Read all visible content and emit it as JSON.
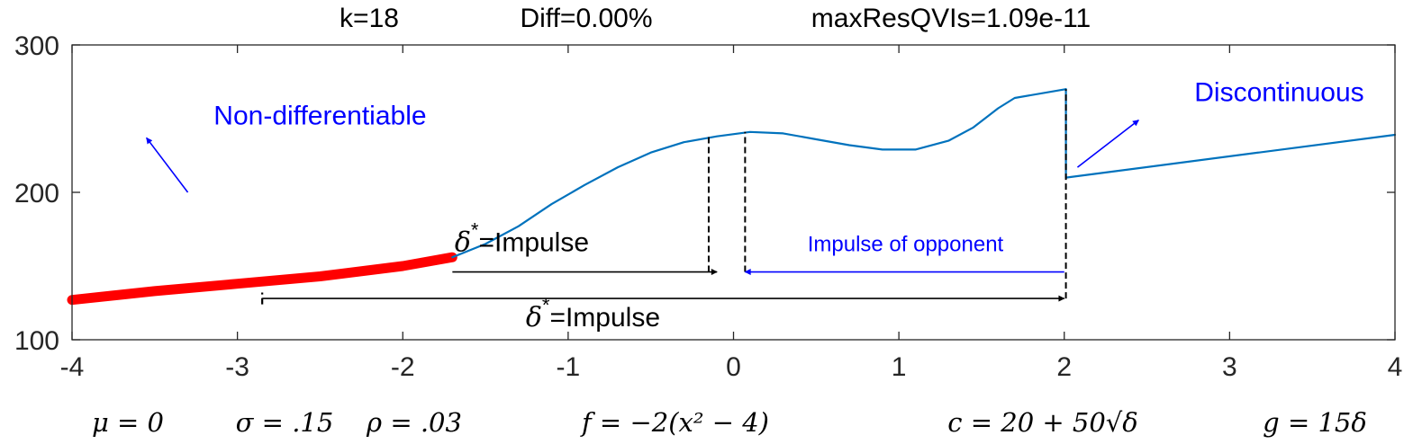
{
  "chart_data": {
    "type": "line",
    "title": "k=18        Diff=0.00%        maxResQVIs=1.09e-11",
    "title_parts": [
      "k=18",
      "Diff=0.00%",
      "maxResQVIs=1.09e-11"
    ],
    "xlabel": "",
    "ylabel": "",
    "xlim": [
      -4,
      4
    ],
    "ylim": [
      100,
      300
    ],
    "x_ticks": [
      -4,
      -3,
      -2,
      -1,
      0,
      1,
      2,
      3,
      4
    ],
    "y_ticks": [
      100,
      200,
      300
    ],
    "grid": false,
    "colors": {
      "line": "#0072bd",
      "highlight": "#ff0000",
      "annotation_blue": "#0000ff",
      "annotation_black": "#000000"
    },
    "series": [
      {
        "style": "thick-red",
        "x": [
          -4.0,
          -3.5,
          -3.0,
          -2.5,
          -2.0,
          -1.7
        ],
        "y": [
          127,
          133,
          138,
          143,
          150,
          156
        ]
      },
      {
        "style": "line",
        "x": [
          -1.7,
          -1.5,
          -1.3,
          -1.1,
          -0.9,
          -0.7,
          -0.5,
          -0.3,
          -0.1,
          0.1,
          0.3,
          0.5,
          0.7,
          0.9,
          1.1,
          1.3,
          1.45,
          1.6,
          1.7,
          2.01
        ],
        "y": [
          156,
          165,
          177,
          192,
          205,
          217,
          227,
          234,
          238,
          241,
          240,
          236,
          232,
          229,
          229,
          235,
          244,
          257,
          264,
          270
        ]
      },
      {
        "style": "line",
        "x": [
          2.01,
          2.01
        ],
        "y": [
          270,
          210
        ]
      },
      {
        "style": "line",
        "x": [
          2.01,
          4.0
        ],
        "y": [
          210,
          239
        ]
      }
    ],
    "annotations": [
      {
        "text": "Non-differentiable",
        "x": -2.5,
        "y": 246,
        "color": "#0000ff",
        "arrow_from": [
          -3.3,
          200
        ],
        "arrow_to": [
          -3.55,
          237
        ]
      },
      {
        "text": "Discontinuous",
        "x": 3.3,
        "y": 262,
        "color": "#0000ff",
        "arrow_from": [
          2.08,
          217
        ],
        "arrow_to": [
          2.45,
          249
        ]
      },
      {
        "text": "Impulse of opponent",
        "x": 1.04,
        "y": 160,
        "color": "#0000ff",
        "arrow_from": [
          2.0,
          146
        ],
        "arrow_to": [
          0.07,
          146
        ]
      },
      {
        "delta": "δ",
        "star": "*",
        "text": "=Impulse",
        "x": -1.28,
        "y": 160,
        "color": "#000000",
        "arrow_from": [
          -1.7,
          146
        ],
        "arrow_to": [
          -0.1,
          146
        ]
      },
      {
        "delta": "δ",
        "star": "*",
        "text": "=Impulse",
        "x": -0.85,
        "y": 109,
        "color": "#000000",
        "arrow_from": [
          -2.85,
          128
        ],
        "arrow_to": [
          2.0,
          128
        ]
      }
    ],
    "reference_lines": [
      {
        "x": -0.15,
        "y0": 146,
        "y1": 238
      },
      {
        "x": 0.07,
        "y0": 146,
        "y1": 241
      },
      {
        "x": 2.01,
        "y0": 128,
        "y1": 270
      },
      {
        "x": -2.85,
        "y0": 124,
        "y1": 132
      }
    ]
  },
  "params": [
    "μ = 0",
    "σ = .15",
    "ρ = .03",
    "f = −2(x² − 4)",
    "c = 20 + 50√δ",
    "g = 15δ"
  ]
}
